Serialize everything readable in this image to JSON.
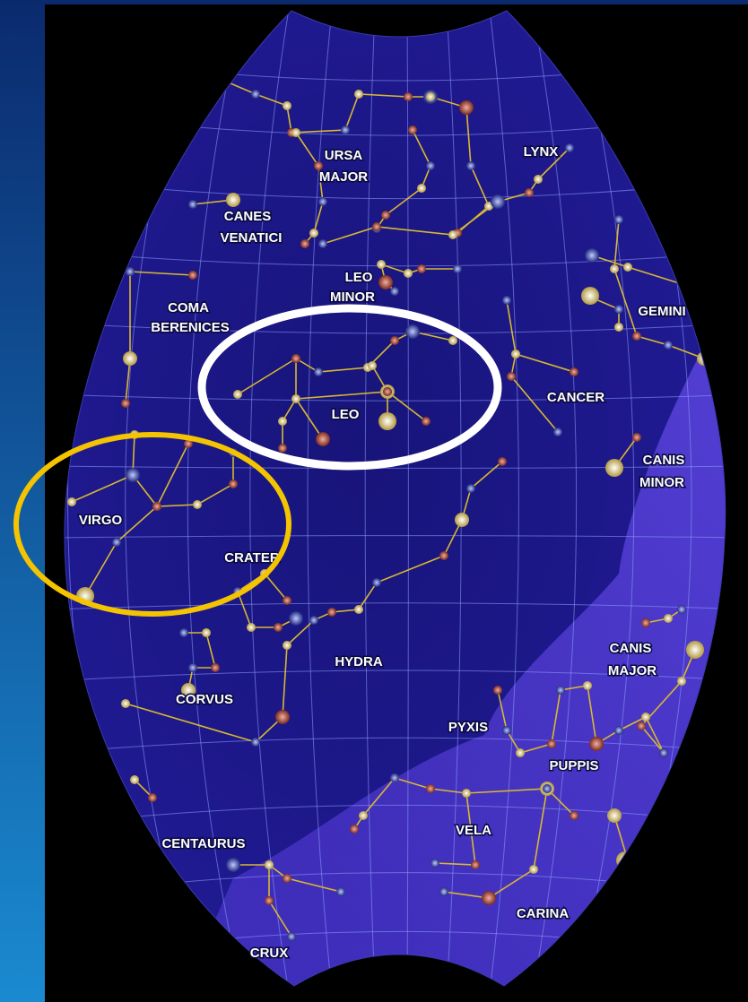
{
  "labels": [
    {
      "lines": [
        "URSA",
        "MAJOR"
      ]
    },
    {
      "lines": [
        "LYNX"
      ]
    },
    {
      "lines": [
        "CANES",
        "VENATICI"
      ]
    },
    {
      "lines": [
        "LEO",
        "MINOR"
      ]
    },
    {
      "lines": [
        "COMA",
        "BERENICES"
      ]
    },
    {
      "lines": [
        "GEMINI"
      ]
    },
    {
      "lines": [
        "LEO"
      ]
    },
    {
      "lines": [
        "CANCER"
      ]
    },
    {
      "lines": [
        "CANIS",
        "MINOR"
      ]
    },
    {
      "lines": [
        "VIRGO"
      ]
    },
    {
      "lines": [
        "CRATER"
      ]
    },
    {
      "lines": [
        "HYDRA"
      ]
    },
    {
      "lines": [
        "CANIS",
        "MAJOR"
      ]
    },
    {
      "lines": [
        "CORVUS"
      ]
    },
    {
      "lines": [
        "PYXIS"
      ]
    },
    {
      "lines": [
        "PUPPIS"
      ]
    },
    {
      "lines": [
        "VELA"
      ]
    },
    {
      "lines": [
        "CENTAURUS"
      ]
    },
    {
      "lines": [
        "CARINA"
      ]
    },
    {
      "lines": [
        "CRUX"
      ]
    }
  ]
}
